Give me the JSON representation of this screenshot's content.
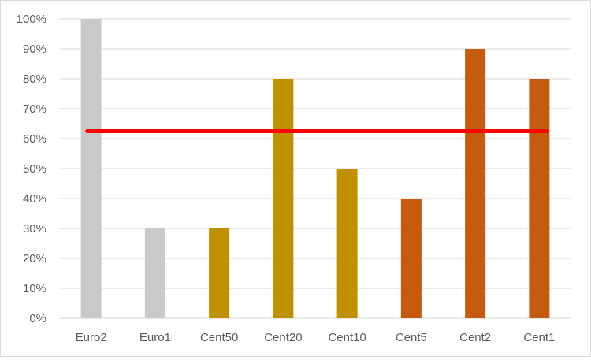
{
  "chart_data": {
    "type": "bar",
    "categories": [
      "Euro2",
      "Euro1",
      "Cent50",
      "Cent20",
      "Cent10",
      "Cent5",
      "Cent2",
      "Cent1"
    ],
    "values": [
      100,
      30,
      30,
      80,
      50,
      40,
      90,
      80
    ],
    "bar_colors": [
      "#c9c9c9",
      "#c9c9c9",
      "#bf9000",
      "#bf9000",
      "#bf9000",
      "#c55a11",
      "#c55a11",
      "#c55a11"
    ],
    "y_tick_values": [
      0,
      10,
      20,
      30,
      40,
      50,
      60,
      70,
      80,
      90,
      100
    ],
    "y_tick_labels": [
      "0%",
      "10%",
      "20%",
      "30%",
      "40%",
      "50%",
      "60%",
      "70%",
      "80%",
      "90%",
      "100%"
    ],
    "ylim": [
      0,
      100
    ],
    "grid": true,
    "reference_line": {
      "value": 62.5,
      "color": "#ff0000"
    },
    "title": "",
    "xlabel": "",
    "ylabel": ""
  }
}
